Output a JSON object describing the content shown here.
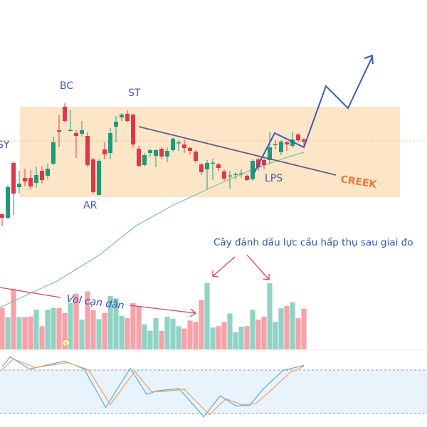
{
  "chart_data": {
    "type": "candlestick",
    "title": "",
    "colors": {
      "up": "#1e9a7a",
      "down": "#e0364a",
      "vol_up": "#8fd3c5",
      "vol_down": "#f5a3a8",
      "range_box": "#fde3c2",
      "stoch_k": "#5aa8e0",
      "stoch_d": "#f0a060",
      "stoch_band": "#e8f3fc",
      "ma": "#7cc3a0",
      "annotation": "#3d5bb5",
      "creek": "#e87a3c",
      "arrow": "#d9445a"
    },
    "candles": [
      [
        29,
        24,
        30,
        12
      ],
      [
        24,
        67,
        70,
        22
      ],
      [
        101,
        58,
        103,
        28
      ],
      [
        67,
        72,
        90,
        58
      ],
      [
        80,
        75,
        93,
        68
      ],
      [
        80,
        68,
        91,
        64
      ],
      [
        73,
        84,
        96,
        66
      ],
      [
        90,
        77,
        96,
        72
      ],
      [
        83,
        93,
        100,
        78
      ],
      [
        100,
        130,
        138,
        98
      ],
      [
        147,
        145,
        168,
        123
      ],
      [
        180,
        160,
        185,
        158
      ],
      [
        147,
        147.5,
        176,
        145
      ],
      [
        143,
        139,
        147,
        108
      ],
      [
        142,
        147,
        160,
        138
      ],
      [
        139,
        98,
        144,
        95
      ],
      [
        106,
        60,
        108,
        58
      ],
      [
        56,
        104,
        106,
        55
      ],
      [
        120,
        113,
        130,
        106
      ],
      [
        115,
        143,
        150,
        106
      ],
      [
        152,
        159,
        167,
        130
      ],
      [
        165,
        169,
        171,
        160
      ],
      [
        170,
        160,
        175,
        158
      ],
      [
        169,
        127,
        170,
        123
      ],
      [
        121,
        97,
        125,
        95
      ],
      [
        98,
        112,
        115,
        96
      ],
      [
        115,
        119,
        121,
        110
      ],
      [
        111,
        119,
        120,
        95
      ],
      [
        121,
        110,
        123,
        106
      ],
      [
        110,
        118,
        123,
        102
      ],
      [
        119,
        135,
        137,
        117
      ],
      [
        129,
        130,
        133,
        118
      ],
      [
        127,
        122,
        134,
        115
      ],
      [
        122,
        118,
        124,
        113
      ],
      [
        117,
        104,
        119,
        101
      ],
      [
        99,
        88,
        101,
        84
      ],
      [
        92,
        101,
        105,
        64
      ],
      [
        101,
        101.5,
        107,
        77
      ],
      [
        99,
        94,
        101,
        90
      ],
      [
        89,
        79,
        92,
        76
      ],
      [
        83,
        83.5,
        90,
        65
      ],
      [
        85,
        85.5,
        88,
        78
      ],
      [
        86,
        86.5,
        92,
        80
      ],
      [
        83,
        77,
        85,
        76
      ],
      [
        78,
        104,
        106,
        76
      ],
      [
        106,
        95,
        108,
        90
      ],
      [
        105,
        98,
        107,
        92
      ],
      [
        105,
        123,
        145,
        100
      ],
      [
        127,
        127.5,
        133,
        120
      ],
      [
        116,
        131,
        133,
        112
      ],
      [
        130,
        127,
        132,
        118
      ],
      [
        125,
        134,
        145,
        122
      ],
      [
        141,
        133,
        143,
        130
      ],
      [
        134,
        131,
        136,
        124
      ]
    ],
    "volume": [
      177,
      137,
      259,
      137,
      137,
      140,
      169,
      99,
      169,
      177,
      177,
      155,
      197,
      237,
      127,
      247,
      167,
      129,
      155,
      227,
      217,
      143,
      133,
      197,
      185,
      107,
      79,
      133,
      79,
      139,
      131,
      99,
      89,
      123,
      117,
      211,
      283,
      93,
      99,
      117,
      153,
      73,
      97,
      99,
      169,
      127,
      139,
      283,
      117,
      175,
      185,
      201,
      133,
      173
    ],
    "volume_dir": "rgrgrrgrggrrgrgrrgrgggrrrgggrgggrrrrggrrgggrgrrgggrgrr",
    "moving_average": [
      [
        -1,
        -45
      ],
      [
        10,
        -30
      ],
      [
        25,
        -8
      ],
      [
        37,
        0
      ],
      [
        40,
        10
      ],
      [
        44,
        22
      ],
      [
        48,
        35
      ],
      [
        53,
        48
      ],
      [
        54,
        50
      ]
    ],
    "stochastic": {
      "k": [
        [
          0,
          84
        ],
        [
          1.4,
          98
        ],
        [
          4.8,
          81
        ],
        [
          11,
          92
        ],
        [
          14.4,
          81
        ],
        [
          18.2,
          28
        ],
        [
          22.5,
          82
        ],
        [
          25.4,
          46
        ],
        [
          27.3,
          51
        ],
        [
          31.1,
          54
        ],
        [
          35.4,
          15
        ],
        [
          38.3,
          44
        ],
        [
          41.1,
          30
        ],
        [
          43.5,
          31
        ],
        [
          45.9,
          54
        ],
        [
          49.3,
          79
        ],
        [
          53,
          86
        ]
      ],
      "d": [
        [
          0,
          80
        ],
        [
          2,
          95
        ],
        [
          5.8,
          83
        ],
        [
          11.5,
          90
        ],
        [
          15.2,
          80
        ],
        [
          19,
          32
        ],
        [
          23.3,
          78
        ],
        [
          26.2,
          50
        ],
        [
          28.3,
          50
        ],
        [
          32,
          53
        ],
        [
          36.4,
          18
        ],
        [
          39.3,
          40
        ],
        [
          42,
          32
        ],
        [
          44.5,
          33
        ],
        [
          47,
          50
        ],
        [
          50.5,
          76
        ],
        [
          53,
          85
        ]
      ],
      "overbought": 80,
      "oversold": 20
    },
    "annotations": {
      "bc": "BC",
      "st": "ST",
      "sy": "SY",
      "ar": "AR",
      "lps": "LPS",
      "creek": "CREEK",
      "vol_note": "Vol cạn dần",
      "absorption_note": "Cây đánh dấu lực cầu hấp thụ sau giai đo",
      "event_marker": "S"
    }
  }
}
